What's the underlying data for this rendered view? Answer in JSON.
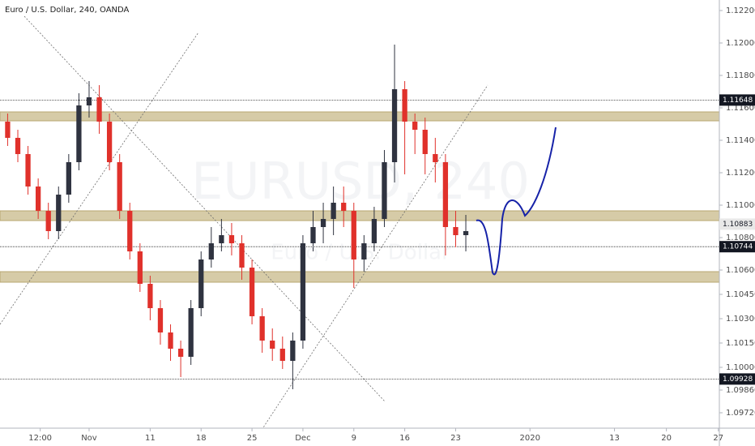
{
  "chart_data": {
    "type": "candlestick",
    "title": "Euro / U.S. Dollar, 240, OANDA",
    "watermark": "EURUSD, 240",
    "watermark_subtitle": "Euro / U.S. Dollar",
    "up_color": "#2f3340",
    "down_color": "#e0312b",
    "x": [
      -8,
      -7,
      -6,
      -5,
      -4,
      -3,
      -2,
      -1,
      0,
      1,
      2,
      3,
      4,
      5,
      6,
      7,
      8,
      9,
      10,
      11,
      12,
      13,
      14,
      15,
      16,
      17,
      18,
      19,
      20,
      21,
      22,
      23,
      24,
      25,
      26,
      27,
      28,
      29,
      30,
      31,
      32,
      33,
      34,
      35,
      36,
      37
    ],
    "open": [
      1.11515,
      1.11415,
      1.11315,
      1.11115,
      1.10965,
      1.1084,
      1.11065,
      1.11265,
      1.11615,
      1.11665,
      1.11515,
      1.11265,
      1.10965,
      1.10715,
      1.10515,
      1.10365,
      1.10215,
      1.10115,
      1.10065,
      1.10365,
      1.10665,
      1.10765,
      1.10815,
      1.10765,
      1.10615,
      1.10315,
      1.10165,
      1.10115,
      1.1004,
      1.10165,
      1.10765,
      1.10865,
      1.10915,
      1.11015,
      1.10965,
      1.10665,
      1.10765,
      1.10915,
      1.11265,
      1.11715,
      1.11515,
      1.11465,
      1.11315,
      1.11265,
      1.10865,
      1.10815
    ],
    "high": [
      1.11565,
      1.11465,
      1.11365,
      1.11165,
      1.11015,
      1.11115,
      1.11315,
      1.1169,
      1.11765,
      1.1174,
      1.11565,
      1.11315,
      1.11015,
      1.10765,
      1.10565,
      1.10415,
      1.10265,
      1.10165,
      1.10415,
      1.10715,
      1.10865,
      1.10915,
      1.1089,
      1.10815,
      1.10665,
      1.10365,
      1.1024,
      1.1019,
      1.10215,
      1.10815,
      1.10965,
      1.11015,
      1.11115,
      1.11115,
      1.11015,
      1.10815,
      1.1099,
      1.1134,
      1.1199,
      1.11765,
      1.11565,
      1.1154,
      1.11415,
      1.11315,
      1.10965,
      1.1094
    ],
    "low": [
      1.11365,
      1.11265,
      1.11065,
      1.10915,
      1.1079,
      1.1079,
      1.11015,
      1.11215,
      1.1154,
      1.1144,
      1.11215,
      1.10915,
      1.10665,
      1.10465,
      1.1029,
      1.1014,
      1.1004,
      1.0994,
      1.10015,
      1.10315,
      1.10615,
      1.10715,
      1.1069,
      1.1054,
      1.10265,
      1.1009,
      1.1004,
      1.0999,
      1.09865,
      1.10115,
      1.10715,
      1.10765,
      1.10815,
      1.10865,
      1.1049,
      1.1059,
      1.10715,
      1.10865,
      1.1114,
      1.1119,
      1.11315,
      1.1119,
      1.1114,
      1.1069,
      1.1074,
      1.10715
    ],
    "close": [
      1.11415,
      1.11315,
      1.11115,
      1.10965,
      1.1084,
      1.11065,
      1.11265,
      1.11615,
      1.11665,
      1.11515,
      1.11265,
      1.10965,
      1.10715,
      1.10515,
      1.10365,
      1.10215,
      1.10115,
      1.10065,
      1.10365,
      1.10665,
      1.10765,
      1.10815,
      1.10765,
      1.10615,
      1.10315,
      1.10165,
      1.10115,
      1.1004,
      1.10165,
      1.10765,
      1.10865,
      1.10915,
      1.11015,
      1.10965,
      1.10665,
      1.10765,
      1.10915,
      1.11265,
      1.11715,
      1.11515,
      1.11465,
      1.11315,
      1.11265,
      1.10865,
      1.10815,
      1.1084
    ],
    "xlim": [
      -8.75,
      61.9
    ],
    "xticks": [
      {
        "value": -4.8,
        "label": "12:00"
      },
      {
        "value": 0,
        "label": "Nov"
      },
      {
        "value": 6,
        "label": "11"
      },
      {
        "value": 11,
        "label": "18"
      },
      {
        "value": 16,
        "label": "25"
      },
      {
        "value": 21,
        "label": "Dec"
      },
      {
        "value": 26,
        "label": "9"
      },
      {
        "value": 31,
        "label": "16"
      },
      {
        "value": 36,
        "label": "23"
      },
      {
        "value": 43.3,
        "label": "2020"
      },
      {
        "value": 51.6,
        "label": "13"
      },
      {
        "value": 56.7,
        "label": "20"
      },
      {
        "value": 61.8,
        "label": "27"
      }
    ],
    "ylim": [
      1.09625,
      1.12265
    ],
    "yticks": [
      {
        "value": 1.122,
        "label": "1.12200"
      },
      {
        "value": 1.12,
        "label": "1.12000"
      },
      {
        "value": 1.118,
        "label": "1.11800"
      },
      {
        "value": 1.116,
        "label": "1.11600"
      },
      {
        "value": 1.114,
        "label": "1.11400"
      },
      {
        "value": 1.112,
        "label": "1.11200"
      },
      {
        "value": 1.11,
        "label": "1.11000"
      },
      {
        "value": 1.108,
        "label": "1.10800"
      },
      {
        "value": 1.106,
        "label": "1.10600"
      },
      {
        "value": 1.1045,
        "label": "1.10450"
      },
      {
        "value": 1.103,
        "label": "1.10300"
      },
      {
        "value": 1.1015,
        "label": "1.10150"
      },
      {
        "value": 1.1,
        "label": "1.10000"
      },
      {
        "value": 1.0986,
        "label": "1.09860"
      },
      {
        "value": 1.0972,
        "label": "1.09720"
      }
    ],
    "levels": [
      {
        "value": 1.11648,
        "label": "1.11648"
      },
      {
        "value": 1.10744,
        "label": "1.10744"
      },
      {
        "value": 1.09928,
        "label": "1.09928"
      }
    ],
    "current_price": {
      "value": 1.10883,
      "label": "1.10883"
    },
    "zones": [
      {
        "low": 1.1152,
        "high": 1.11575
      },
      {
        "low": 1.10905,
        "high": 1.10965
      },
      {
        "low": 1.10525,
        "high": 1.1059
      }
    ],
    "zone_color": "#c8b98a",
    "grid": false
  }
}
